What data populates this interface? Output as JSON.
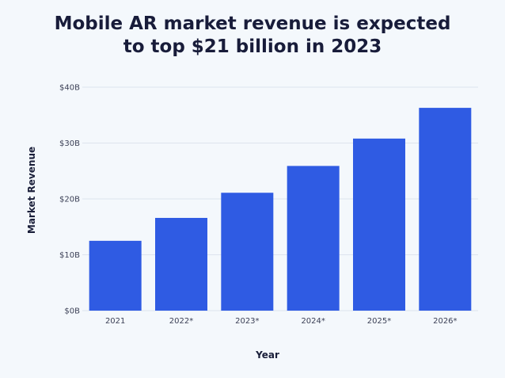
{
  "chart_data": {
    "type": "bar",
    "title_lines": [
      "Mobile AR market revenue is expected",
      "to top $21 billion in 2023"
    ],
    "xlabel": "Year",
    "ylabel": "Market Revenue",
    "categories": [
      "2021",
      "2022*",
      "2023*",
      "2024*",
      "2025*",
      "2026*"
    ],
    "values": [
      12.5,
      16.6,
      21.1,
      25.9,
      30.8,
      36.3
    ],
    "unit": "billion USD",
    "yticks": [
      {
        "value": 0,
        "label": "$0B"
      },
      {
        "value": 10,
        "label": "$10B"
      },
      {
        "value": 20,
        "label": "$20B"
      },
      {
        "value": 30,
        "label": "$30B"
      },
      {
        "value": 40,
        "label": "$40B"
      }
    ],
    "ylim": [
      0,
      40
    ],
    "grid": true,
    "legend": "none",
    "colors": {
      "bar": "#2f5be3",
      "grid": "#dde3ee",
      "background": "#f4f8fc"
    }
  }
}
